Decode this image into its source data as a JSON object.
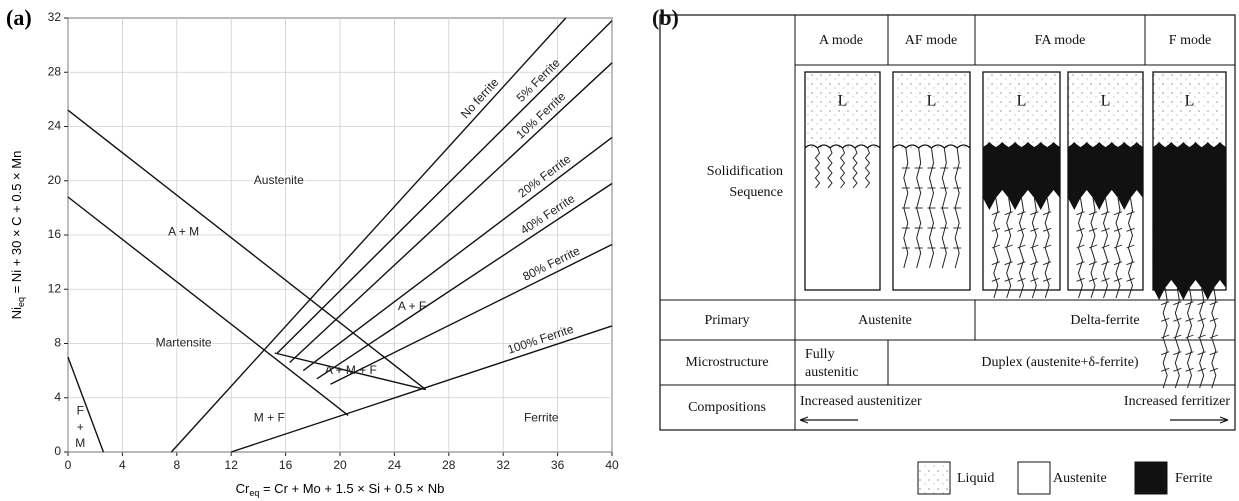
{
  "chart_data": {
    "type": "line",
    "label": "(a)",
    "x_label": {
      "base": "Cr",
      "sub": "eq",
      "rest": " = Cr + Mo + 1.5 × Si + 0.5 × Nb"
    },
    "y_label": {
      "base": "Ni",
      "sub": "eq",
      "rest": " = Ni + 30 × C + 0.5 × Mn"
    },
    "xlim": [
      0,
      40
    ],
    "ylim": [
      0,
      32
    ],
    "xticks": [
      0,
      4,
      8,
      12,
      16,
      20,
      24,
      28,
      32,
      36,
      40
    ],
    "yticks": [
      0,
      4,
      8,
      12,
      16,
      20,
      24,
      28,
      32
    ],
    "grid": true,
    "color": "#111111",
    "series": [
      {
        "name": "No ferrite",
        "x": [
          7.6,
          36.6
        ],
        "values": [
          0,
          32
        ]
      },
      {
        "name": "5% Ferrite",
        "x": [
          15.4,
          40
        ],
        "values": [
          7.3,
          31.8
        ]
      },
      {
        "name": "10% Ferrite",
        "x": [
          16.3,
          40
        ],
        "values": [
          6.6,
          28.7
        ]
      },
      {
        "name": "20% Ferrite",
        "x": [
          17.3,
          40
        ],
        "values": [
          6.0,
          23.2
        ]
      },
      {
        "name": "40% Ferrite",
        "x": [
          18.3,
          40
        ],
        "values": [
          5.4,
          19.8
        ]
      },
      {
        "name": "80% Ferrite",
        "x": [
          19.3,
          40
        ],
        "values": [
          5.0,
          15.3
        ]
      },
      {
        "name": "100% Ferrite",
        "x": [
          12,
          40
        ],
        "values": [
          0,
          9.3
        ]
      },
      {
        "x": [
          0,
          26.3
        ],
        "values": [
          25.2,
          4.6
        ]
      },
      {
        "x": [
          0,
          20.6
        ],
        "values": [
          18.8,
          2.7
        ]
      },
      {
        "x": [
          0,
          2.6
        ],
        "values": [
          7,
          0
        ]
      },
      {
        "x": [
          15.2,
          26.3
        ],
        "values": [
          7.3,
          4.6
        ]
      }
    ],
    "annotations": [
      "Austenite",
      "A + M",
      "Martensite",
      "A + F",
      "A + M + F",
      "M + F",
      "Ferrite",
      "F",
      "+",
      "M"
    ]
  },
  "panel_b": {
    "label": "(b)",
    "modes": [
      "A mode",
      "AF mode",
      "FA mode",
      "F mode"
    ],
    "sequence_label": [
      "Solidification",
      "Sequence"
    ],
    "liquid_marks": [
      "L",
      "L",
      "L",
      "L",
      "L"
    ],
    "primary": {
      "label": "Primary",
      "cells": [
        "Austenite",
        "Delta-ferrite"
      ]
    },
    "microstructure": {
      "label": "Microstructure",
      "cells": [
        [
          "Fully",
          "austenitic"
        ],
        "Duplex (austenite+δ-ferrite)"
      ]
    },
    "compositions": {
      "label": "Compositions",
      "cells": [
        "Increased austenitizer",
        "Increased ferritizer"
      ]
    },
    "legend": [
      "Liquid",
      "Austenite",
      "Ferrite"
    ]
  }
}
